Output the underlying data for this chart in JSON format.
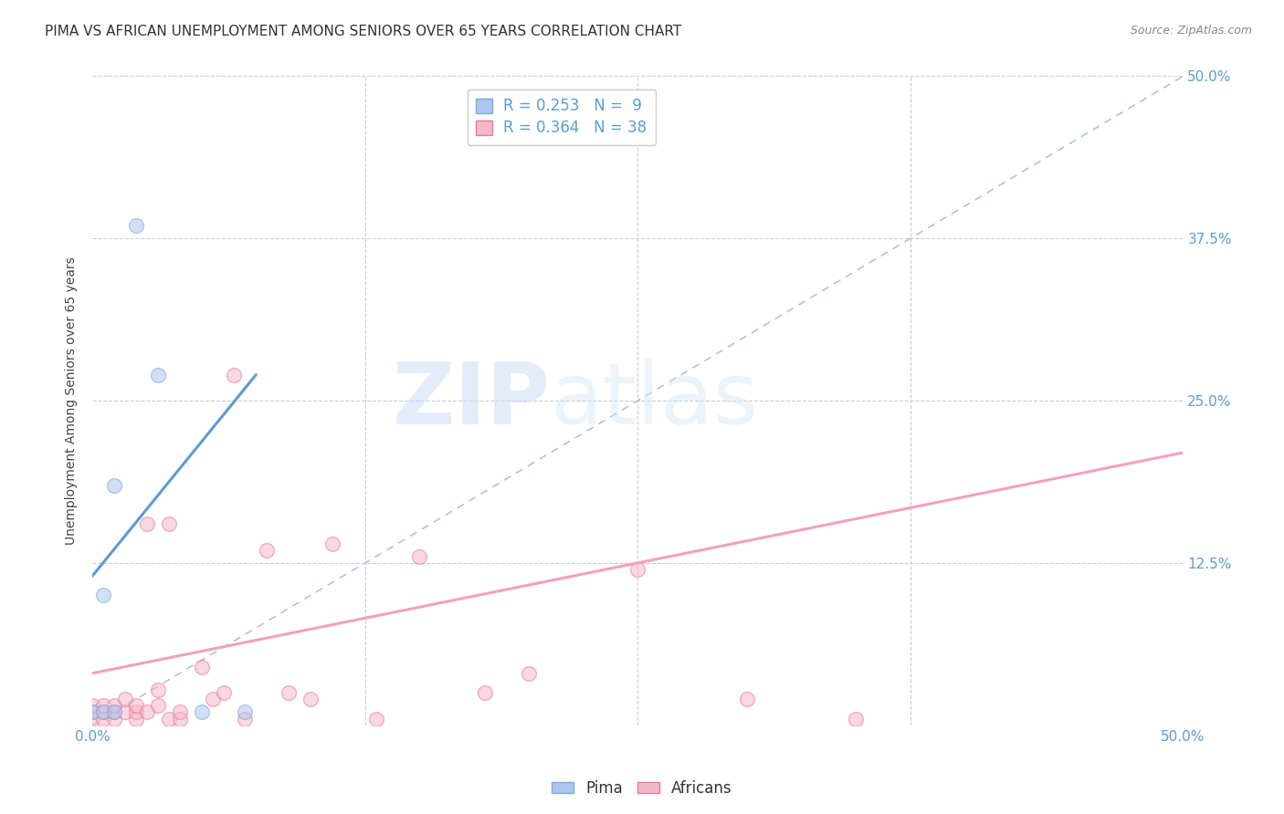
{
  "title": "PIMA VS AFRICAN UNEMPLOYMENT AMONG SENIORS OVER 65 YEARS CORRELATION CHART",
  "source": "Source: ZipAtlas.com",
  "ylabel": "Unemployment Among Seniors over 65 years",
  "xlim": [
    0.0,
    0.5
  ],
  "ylim": [
    0.0,
    0.5
  ],
  "xtick_vals": [
    0.0,
    0.125,
    0.25,
    0.375,
    0.5
  ],
  "xticklabels": [
    "0.0%",
    "",
    "",
    "",
    "50.0%"
  ],
  "ytick_right_labels": [
    "50.0%",
    "37.5%",
    "25.0%",
    "12.5%",
    ""
  ],
  "ytick_right_values": [
    0.5,
    0.375,
    0.25,
    0.125,
    0.0
  ],
  "grid_color": "#cccccc",
  "background_color": "#ffffff",
  "pima_color": "#adc6f0",
  "pima_edge_color": "#7baad8",
  "africans_color": "#f5b8c8",
  "africans_edge_color": "#e87a9a",
  "pima_line_color": "#5b9bd5",
  "africans_line_color": "#f4a0b8",
  "diagonal_color": "#b0c4de",
  "pima_R": 0.253,
  "pima_N": 9,
  "africans_R": 0.364,
  "africans_N": 38,
  "legend_pima_label": "R = 0.253   N =  9",
  "legend_africans_label": "R = 0.364   N = 38",
  "watermark_zip": "ZIP",
  "watermark_atlas": "atlas",
  "pima_x": [
    0.0,
    0.005,
    0.005,
    0.01,
    0.01,
    0.02,
    0.03,
    0.05,
    0.07
  ],
  "pima_y": [
    0.01,
    0.01,
    0.1,
    0.01,
    0.185,
    0.385,
    0.27,
    0.01,
    0.01
  ],
  "pima_line_x": [
    0.0,
    0.075
  ],
  "pima_line_y": [
    0.115,
    0.27
  ],
  "africans_x": [
    0.0,
    0.0,
    0.0,
    0.005,
    0.005,
    0.005,
    0.01,
    0.01,
    0.01,
    0.015,
    0.015,
    0.02,
    0.02,
    0.02,
    0.025,
    0.025,
    0.03,
    0.03,
    0.035,
    0.035,
    0.04,
    0.04,
    0.05,
    0.055,
    0.06,
    0.065,
    0.07,
    0.08,
    0.09,
    0.1,
    0.11,
    0.13,
    0.15,
    0.18,
    0.2,
    0.25,
    0.3,
    0.35
  ],
  "africans_y": [
    0.005,
    0.01,
    0.015,
    0.005,
    0.01,
    0.015,
    0.005,
    0.01,
    0.015,
    0.01,
    0.02,
    0.005,
    0.01,
    0.015,
    0.01,
    0.155,
    0.015,
    0.027,
    0.005,
    0.155,
    0.005,
    0.01,
    0.045,
    0.02,
    0.025,
    0.27,
    0.005,
    0.135,
    0.025,
    0.02,
    0.14,
    0.005,
    0.13,
    0.025,
    0.04,
    0.12,
    0.02,
    0.005
  ],
  "africans_line_x": [
    0.0,
    0.5
  ],
  "africans_line_y": [
    0.04,
    0.21
  ],
  "marker_size": 130,
  "marker_alpha": 0.55,
  "title_fontsize": 11,
  "axis_label_fontsize": 10,
  "tick_fontsize": 11,
  "legend_fontsize": 11,
  "source_fontsize": 9
}
